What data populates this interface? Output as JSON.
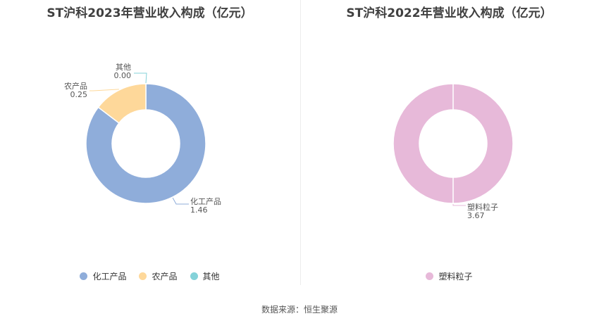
{
  "footer": "数据来源：恒生聚源",
  "chart_data": [
    {
      "type": "pie",
      "title": "ST沪科2023年营业收入构成（亿元）",
      "categories": [
        "化工产品",
        "农产品",
        "其他"
      ],
      "values": [
        1.46,
        0.25,
        0.0
      ],
      "value_labels": [
        "1.46",
        "0.25",
        "0.00"
      ],
      "colors": [
        "#8fadda",
        "#fed89a",
        "#84d2d9"
      ],
      "legend": {
        "position": "bottom",
        "entries": [
          "化工产品",
          "农产品",
          "其他"
        ]
      }
    },
    {
      "type": "pie",
      "title": "ST沪科2022年营业收入构成（亿元）",
      "categories": [
        "塑料粒子"
      ],
      "values": [
        3.67
      ],
      "value_labels": [
        "3.67"
      ],
      "colors": [
        "#e7b9d9"
      ],
      "legend": {
        "position": "bottom",
        "entries": [
          "塑料粒子"
        ]
      }
    }
  ]
}
